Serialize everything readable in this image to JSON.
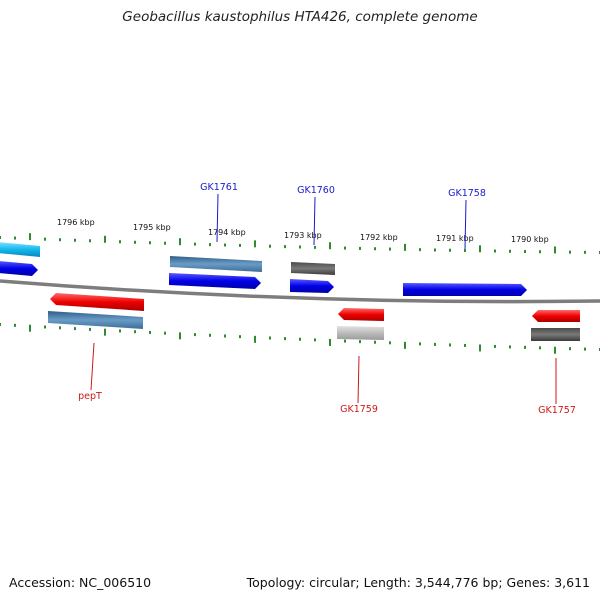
{
  "title": "Geobacillus kaustophilus HTA426, complete genome",
  "footer": {
    "accession": "Accession: NC_006510",
    "summary": "Topology: circular; Length: 3,544,776 bp; Genes: 3,611"
  },
  "colors": {
    "backbone": "#8a8a8a",
    "ticks": "#2e8b2e",
    "label_upper": "#1a1acc",
    "label_lower": "#cc1a1a"
  },
  "scale_labels": [
    "1796 kbp",
    "1795 kbp",
    "1794 kbp",
    "1793 kbp",
    "1792 kbp",
    "1791 kbp",
    "1790 kbp"
  ],
  "gene_labels": [
    "GK1761",
    "GK1760",
    "GK1758",
    "pepT",
    "GK1759",
    "GK1757"
  ]
}
